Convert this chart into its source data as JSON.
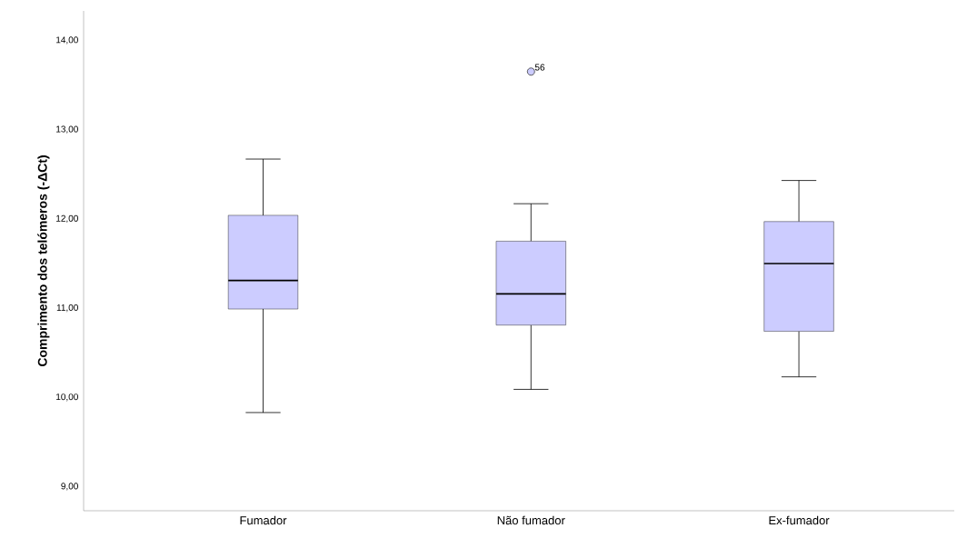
{
  "chart_data": {
    "type": "box",
    "ylabel": "Comprimento dos telómeros (-ΔCt)",
    "categories": [
      "Fumador",
      "Não fumador",
      "Ex-fumador"
    ],
    "color": "#ccccff",
    "boxes": [
      {
        "low": 9.83,
        "q1": 10.99,
        "median": 11.31,
        "q3": 12.04,
        "high": 12.67
      },
      {
        "low": 10.09,
        "q1": 10.81,
        "median": 11.16,
        "q3": 11.75,
        "high": 12.17,
        "outliers": [
          13.65
        ]
      },
      {
        "low": 10.23,
        "q1": 10.74,
        "median": 11.5,
        "q3": 11.97,
        "high": 12.43
      }
    ],
    "ylim": [
      8.73,
      14.33
    ],
    "yticks": [
      {
        "value": 9,
        "label": "9,00"
      },
      {
        "value": 10,
        "label": "10,00"
      },
      {
        "value": 11,
        "label": "11,00"
      },
      {
        "value": 12,
        "label": "12,00"
      },
      {
        "value": 13,
        "label": "13,00"
      },
      {
        "value": 14,
        "label": "14,00"
      }
    ],
    "annotations": [
      "56"
    ]
  }
}
